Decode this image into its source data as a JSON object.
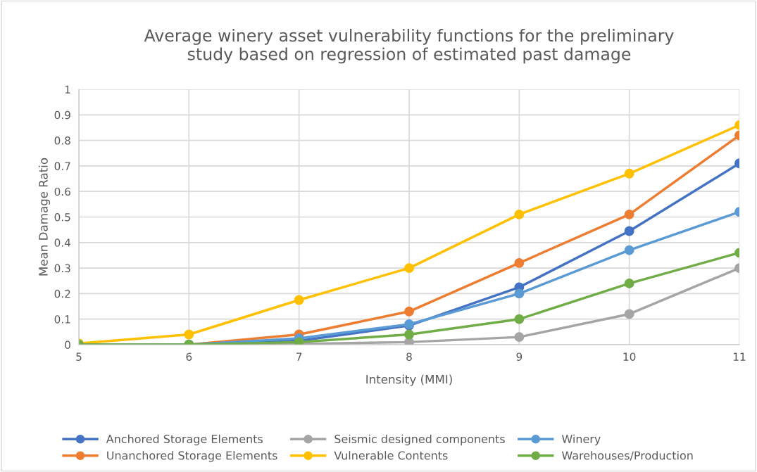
{
  "chart_data": {
    "type": "line",
    "title": "Average winery asset vulnerability functions for the preliminary\nstudy based on regression of estimated past damage",
    "xlabel": "Intensity (MMI)",
    "ylabel": "Mean Damage Ratio",
    "x": [
      5,
      6,
      7,
      8,
      9,
      10,
      11
    ],
    "series": [
      {
        "name": "Anchored Storage Elements",
        "color": "#4472c4",
        "values": [
          0,
          0,
          0.015,
          0.075,
          0.225,
          0.445,
          0.71
        ]
      },
      {
        "name": "Unanchored Storage Elements",
        "color": "#ed7d31",
        "values": [
          0,
          0,
          0.04,
          0.13,
          0.32,
          0.51,
          0.82
        ]
      },
      {
        "name": "Seismic designed components",
        "color": "#a5a5a5",
        "values": [
          0,
          0,
          0.003,
          0.01,
          0.03,
          0.12,
          0.3
        ]
      },
      {
        "name": "Vulnerable Contents",
        "color": "#ffc000",
        "values": [
          0.005,
          0.04,
          0.175,
          0.3,
          0.51,
          0.67,
          0.86
        ]
      },
      {
        "name": "Winery",
        "color": "#5b9bd5",
        "values": [
          0,
          0,
          0.025,
          0.08,
          0.2,
          0.37,
          0.52
        ]
      },
      {
        "name": "Warehouses/Production",
        "color": "#70ad47",
        "values": [
          0,
          0,
          0.01,
          0.04,
          0.1,
          0.24,
          0.36
        ]
      }
    ],
    "xlim": [
      5,
      11
    ],
    "xticks": [
      5,
      6,
      7,
      8,
      9,
      10,
      11
    ],
    "ylim": [
      0,
      1
    ],
    "yticks": [
      0,
      {
        "value": 0.1,
        "label": "0.1"
      },
      {
        "value": 0.2,
        "label": "0.2"
      },
      {
        "value": 0.3,
        "label": "0.3"
      },
      {
        "value": 0.4,
        "label": "0.4"
      },
      {
        "value": 0.5,
        "label": "0.5"
      },
      {
        "value": 0.6,
        "label": "0.6"
      },
      {
        "value": 0.7,
        "label": "0.7"
      },
      {
        "value": 0.8,
        "label": "0.8"
      },
      {
        "value": 0.9,
        "label": "0.9"
      },
      1
    ],
    "grid": true,
    "legend": "bottom",
    "marker": "circle",
    "line_style": "solid"
  }
}
